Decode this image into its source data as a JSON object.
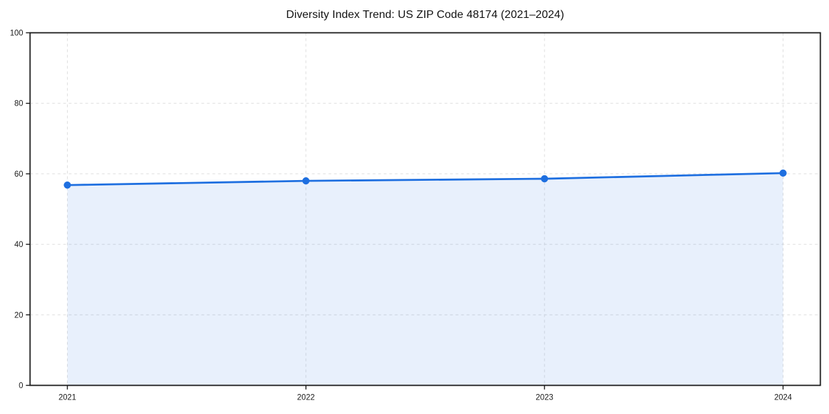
{
  "chart_data": {
    "type": "area",
    "title": "Diversity Index Trend: US ZIP Code 48174 (2021–2024)",
    "x_labels": [
      "2021",
      "2022",
      "2023",
      "2024"
    ],
    "x": [
      2021,
      2022,
      2023,
      2024
    ],
    "series": [
      {
        "name": "Diversity Index",
        "values": [
          56.8,
          58.0,
          58.6,
          60.2
        ]
      }
    ],
    "xlabel": "",
    "ylabel": "",
    "ylim": [
      0,
      100
    ],
    "yticks": [
      0,
      20,
      40,
      60,
      80,
      100
    ],
    "grid": "dashed",
    "legend_position": "none",
    "colors": {
      "line": "#1e6fe0",
      "marker": "#1e6fe0",
      "fill": "rgba(30,111,224,0.10)",
      "grid": "#dedede",
      "spine": "#1a1a1a",
      "tick_text": "#1a1a1a",
      "background": "#ffffff"
    }
  }
}
